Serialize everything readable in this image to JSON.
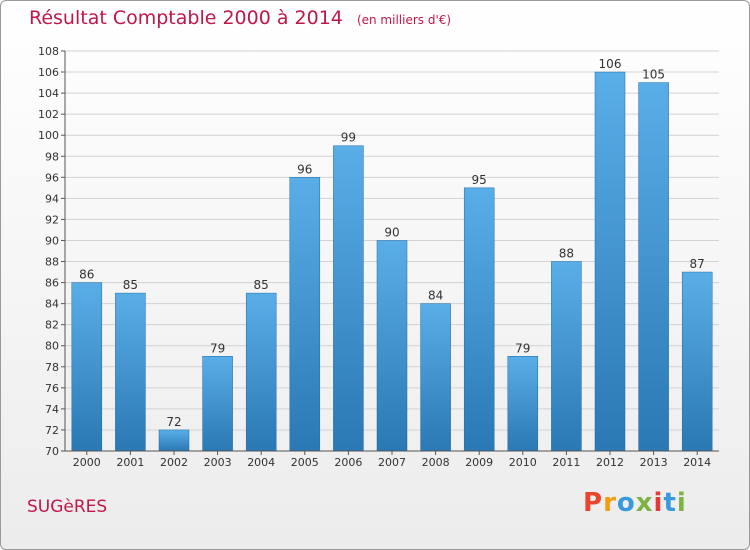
{
  "header": {
    "title": "Résultat Comptable 2000 à 2014",
    "unit": "(en milliers d'€)"
  },
  "footer": {
    "place": "SUGèRES",
    "brand": "Proxiti",
    "brand_colors": [
      "#e8452c",
      "#f39c12",
      "#3a9ad9",
      "#7cb342",
      "#e53935",
      "#3a9ad9",
      "#7cb342"
    ]
  },
  "colors": {
    "title": "#c0174a",
    "bar_light": "#5aaee8",
    "bar_dark": "#2a78b4",
    "grid": "#d2d2d2"
  },
  "chart_data": {
    "type": "bar",
    "title": "Résultat Comptable 2000 à 2014",
    "subtitle": "(en milliers d'€)",
    "categories": [
      "2000",
      "2001",
      "2002",
      "2003",
      "2004",
      "2005",
      "2006",
      "2007",
      "2008",
      "2009",
      "2010",
      "2011",
      "2012",
      "2013",
      "2014"
    ],
    "values": [
      86,
      85,
      72,
      79,
      85,
      96,
      99,
      90,
      84,
      95,
      79,
      88,
      106,
      105,
      87
    ],
    "ylim": [
      70,
      108
    ],
    "ytick_step": 2,
    "grid": true,
    "legend": "none"
  }
}
